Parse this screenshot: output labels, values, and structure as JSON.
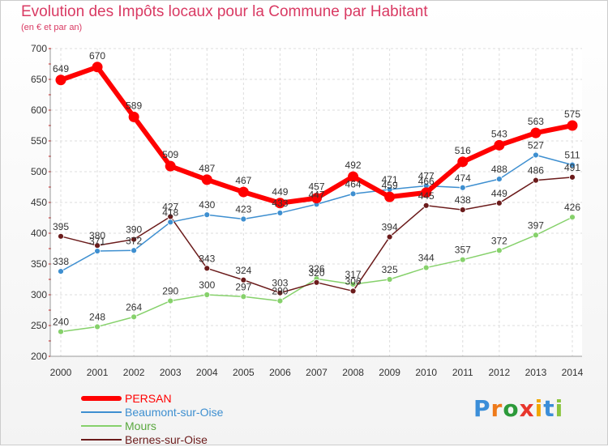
{
  "chart_data": {
    "type": "line",
    "title": "Evolution des Impôts locaux pour la Commune par Habitant",
    "subtitle": "(en € et par an)",
    "ylim": [
      200,
      700
    ],
    "yticks": [
      200,
      250,
      300,
      350,
      400,
      450,
      500,
      550,
      600,
      650,
      700
    ],
    "categories": [
      "2000",
      "2001",
      "2002",
      "2003",
      "2004",
      "2005",
      "2006",
      "2007",
      "2008",
      "2009",
      "2010",
      "2011",
      "2012",
      "2013",
      "2014"
    ],
    "series": [
      {
        "name": "PERSAN",
        "color": "#ff0000",
        "values": [
          649,
          670,
          589,
          509,
          487,
          467,
          449,
          457,
          492,
          459,
          466,
          516,
          543,
          563,
          575
        ],
        "labels": [
          "649",
          "670",
          "589",
          "509",
          "487",
          "467",
          "449",
          "457",
          "492",
          "459",
          "466",
          "516",
          "543",
          "563",
          "575"
        ]
      },
      {
        "name": "Beaumont-sur-Oise",
        "color": "#3e8fd0",
        "values": [
          338,
          371,
          372,
          418,
          430,
          423,
          433,
          447,
          464,
          471,
          477,
          474,
          488,
          527,
          511
        ],
        "labels": [
          "338",
          "371",
          "372",
          "418",
          "430",
          "423",
          "433",
          "447",
          "464",
          "471",
          "477",
          "474",
          "488",
          "527",
          "511"
        ]
      },
      {
        "name": "Mours",
        "color": "#86d16b",
        "values": [
          240,
          248,
          264,
          290,
          300,
          297,
          290,
          326,
          317,
          325,
          344,
          357,
          372,
          397,
          426
        ],
        "labels": [
          "240",
          "248",
          "264",
          "290",
          "300",
          "297",
          "290",
          "326",
          "317",
          "325",
          "344",
          "357",
          "372",
          "397",
          "426"
        ]
      },
      {
        "name": "Bernes-sur-Oise",
        "color": "#6b1b1b",
        "values": [
          395,
          380,
          390,
          427,
          343,
          324,
          303,
          320,
          306,
          394,
          445,
          438,
          449,
          486,
          491
        ],
        "labels": [
          "395",
          "380",
          "390",
          "427",
          "343",
          "324",
          "303",
          "320",
          "306",
          "394",
          "445",
          "438",
          "449",
          "486",
          "491"
        ]
      }
    ]
  },
  "legend": [
    {
      "label": "PERSAN",
      "color": "#ff0000"
    },
    {
      "label": "Beaumont-sur-Oise",
      "color": "#3e8fd0"
    },
    {
      "label": "Mours",
      "color": "#86d16b"
    },
    {
      "label": "Bernes-sur-Oise",
      "color": "#6b1b1b"
    }
  ],
  "logo": {
    "text": "Proxiti"
  }
}
